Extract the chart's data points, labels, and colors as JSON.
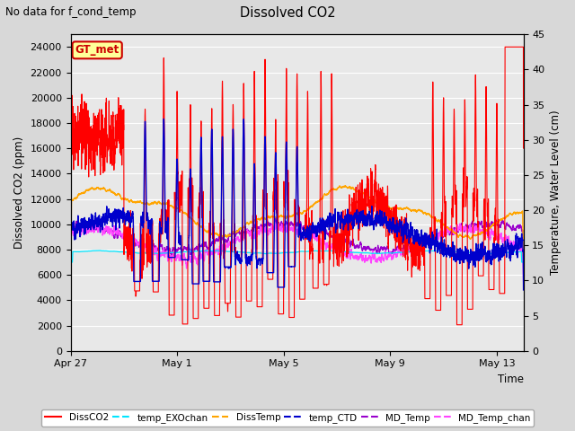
{
  "title": "Dissolved CO2",
  "subtitle": "No data for f_cond_temp",
  "xlabel": "Time",
  "ylabel_left": "Dissolved CO2 (ppm)",
  "ylabel_right": "Temperature, Water Level (cm)",
  "ylim_left": [
    0,
    25000
  ],
  "ylim_right": [
    0,
    45
  ],
  "yticks_left": [
    0,
    2000,
    4000,
    6000,
    8000,
    10000,
    12000,
    14000,
    16000,
    18000,
    20000,
    22000,
    24000
  ],
  "yticks_right": [
    0,
    5,
    10,
    15,
    20,
    25,
    30,
    35,
    40,
    45
  ],
  "xtick_labels": [
    "Apr 27",
    "May 1",
    "May 5",
    "May 9",
    "May 13"
  ],
  "xtick_pos": [
    0,
    4,
    8,
    12,
    16
  ],
  "xlim": [
    0,
    17
  ],
  "bg_color": "#d8d8d8",
  "plot_bg_color": "#e8e8e8",
  "grid_color": "#ffffff",
  "legend_labels": [
    "DissCO2",
    "temp_EXOchan",
    "DissTemp",
    "temp_CTD",
    "MD_Temp",
    "MD_Temp_chan"
  ],
  "legend_colors": [
    "#ff0000",
    "#00e5ff",
    "#ffa500",
    "#0000cc",
    "#9900cc",
    "#ff44ff"
  ],
  "legend_dashes": [
    false,
    true,
    true,
    true,
    true,
    true
  ],
  "gt_met_label": "GT_met",
  "gt_met_color": "#cc0000",
  "gt_met_bg": "#ffff99",
  "gt_met_edge": "#cc0000"
}
